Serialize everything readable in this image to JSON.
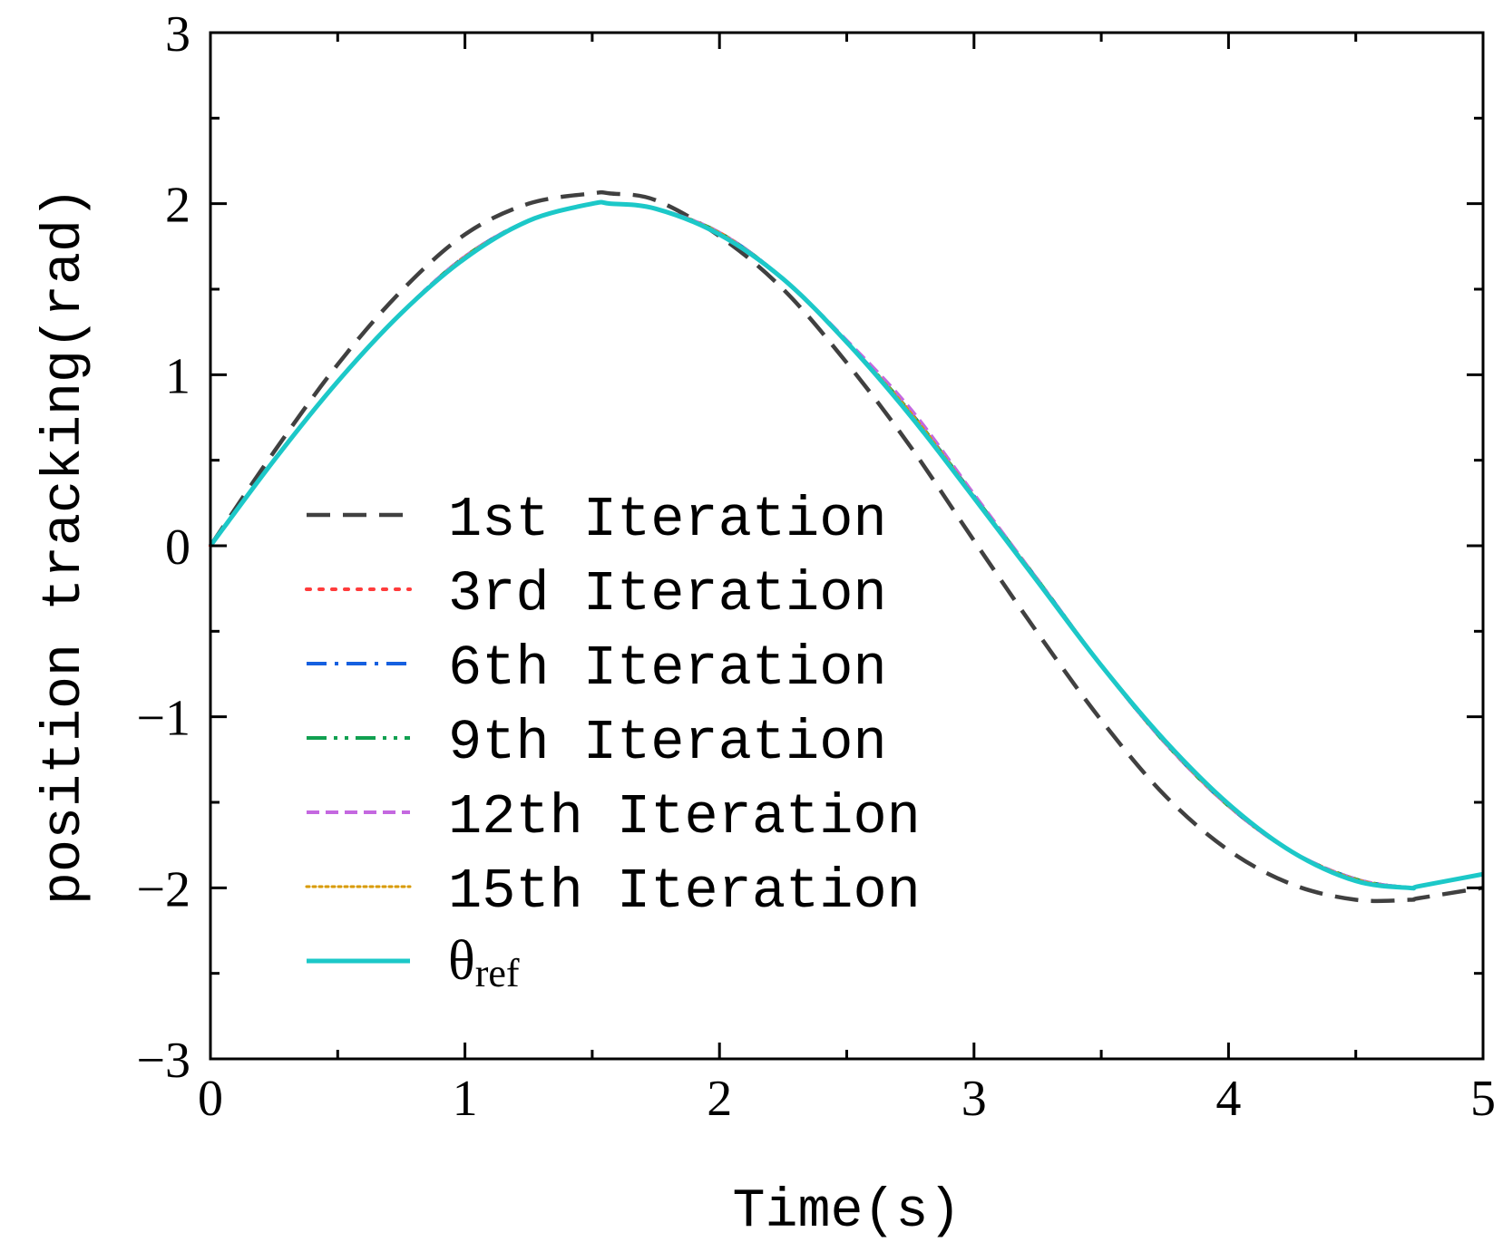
{
  "chart_data": {
    "type": "line",
    "title": "",
    "xlabel": "Time(s)",
    "ylabel": "position tracking(rad)",
    "xlim": [
      0,
      5
    ],
    "ylim": [
      -3,
      3
    ],
    "xticks": [
      "0",
      "1",
      "2",
      "3",
      "4",
      "5"
    ],
    "yticks": [
      "−3",
      "−2",
      "−1",
      "0",
      "1",
      "2",
      "3"
    ],
    "grid": false,
    "legend_position": "center-left",
    "x": [
      0,
      0.25,
      0.5,
      0.75,
      1.0,
      1.25,
      1.5,
      1.57,
      1.75,
      2.0,
      2.25,
      2.5,
      2.75,
      3.0,
      3.25,
      3.5,
      3.75,
      4.0,
      4.25,
      4.5,
      4.71,
      4.75,
      5.0
    ],
    "series": [
      {
        "name": "1st Iteration",
        "color": "#404040",
        "dash": "dashed",
        "values": [
          0,
          0.55,
          1.06,
          1.49,
          1.82,
          2.0,
          2.06,
          2.06,
          2.02,
          1.81,
          1.5,
          1.07,
          0.58,
          0.03,
          -0.51,
          -1.02,
          -1.46,
          -1.78,
          -1.98,
          -2.07,
          -2.07,
          -2.06,
          -2.0
        ]
      },
      {
        "name": "3rd Iteration",
        "color": "#ff3b3b",
        "dash": "dotted",
        "values": [
          0,
          0.5,
          0.96,
          1.36,
          1.69,
          1.9,
          2.0,
          2.0,
          1.97,
          1.83,
          1.56,
          1.19,
          0.78,
          0.29,
          -0.2,
          -0.7,
          -1.15,
          -1.52,
          -1.79,
          -1.95,
          -2.0,
          -1.99,
          -1.92
        ]
      },
      {
        "name": "6th Iteration",
        "color": "#1560e0",
        "dash": "dashdot",
        "values": [
          0,
          0.5,
          0.96,
          1.36,
          1.69,
          1.9,
          2.0,
          2.0,
          1.97,
          1.83,
          1.56,
          1.19,
          0.78,
          0.29,
          -0.2,
          -0.7,
          -1.15,
          -1.52,
          -1.79,
          -1.95,
          -2.0,
          -1.99,
          -1.92
        ]
      },
      {
        "name": "9th Iteration",
        "color": "#10a050",
        "dash": "dashdotdot",
        "values": [
          0,
          0.5,
          0.96,
          1.36,
          1.69,
          1.9,
          2.0,
          2.0,
          1.97,
          1.83,
          1.56,
          1.19,
          0.78,
          0.29,
          -0.2,
          -0.7,
          -1.15,
          -1.52,
          -1.79,
          -1.95,
          -2.0,
          -1.99,
          -1.92
        ]
      },
      {
        "name": "12th Iteration",
        "color": "#c468e0",
        "dash": "shortdash",
        "values": [
          0,
          0.5,
          0.96,
          1.36,
          1.69,
          1.9,
          2.0,
          2.0,
          1.97,
          1.83,
          1.56,
          1.2,
          0.8,
          0.3,
          -0.2,
          -0.7,
          -1.15,
          -1.52,
          -1.79,
          -1.95,
          -2.0,
          -1.99,
          -1.92
        ]
      },
      {
        "name": "15th Iteration",
        "color": "#d89a00",
        "dash": "dense-dot",
        "values": [
          0,
          0.5,
          0.96,
          1.36,
          1.69,
          1.9,
          2.0,
          2.0,
          1.97,
          1.83,
          1.56,
          1.19,
          0.78,
          0.29,
          -0.2,
          -0.7,
          -1.15,
          -1.52,
          -1.79,
          -1.95,
          -2.0,
          -1.99,
          -1.92
        ]
      },
      {
        "name": "θref",
        "symbol": "θ",
        "subscript": "ref",
        "color": "#1cc8c8",
        "dash": "solid",
        "values": [
          0,
          0.5,
          0.96,
          1.36,
          1.68,
          1.9,
          2.0,
          2.0,
          1.97,
          1.82,
          1.56,
          1.19,
          0.76,
          0.28,
          -0.21,
          -0.7,
          -1.14,
          -1.51,
          -1.79,
          -1.96,
          -2.0,
          -1.99,
          -1.92
        ]
      }
    ]
  }
}
